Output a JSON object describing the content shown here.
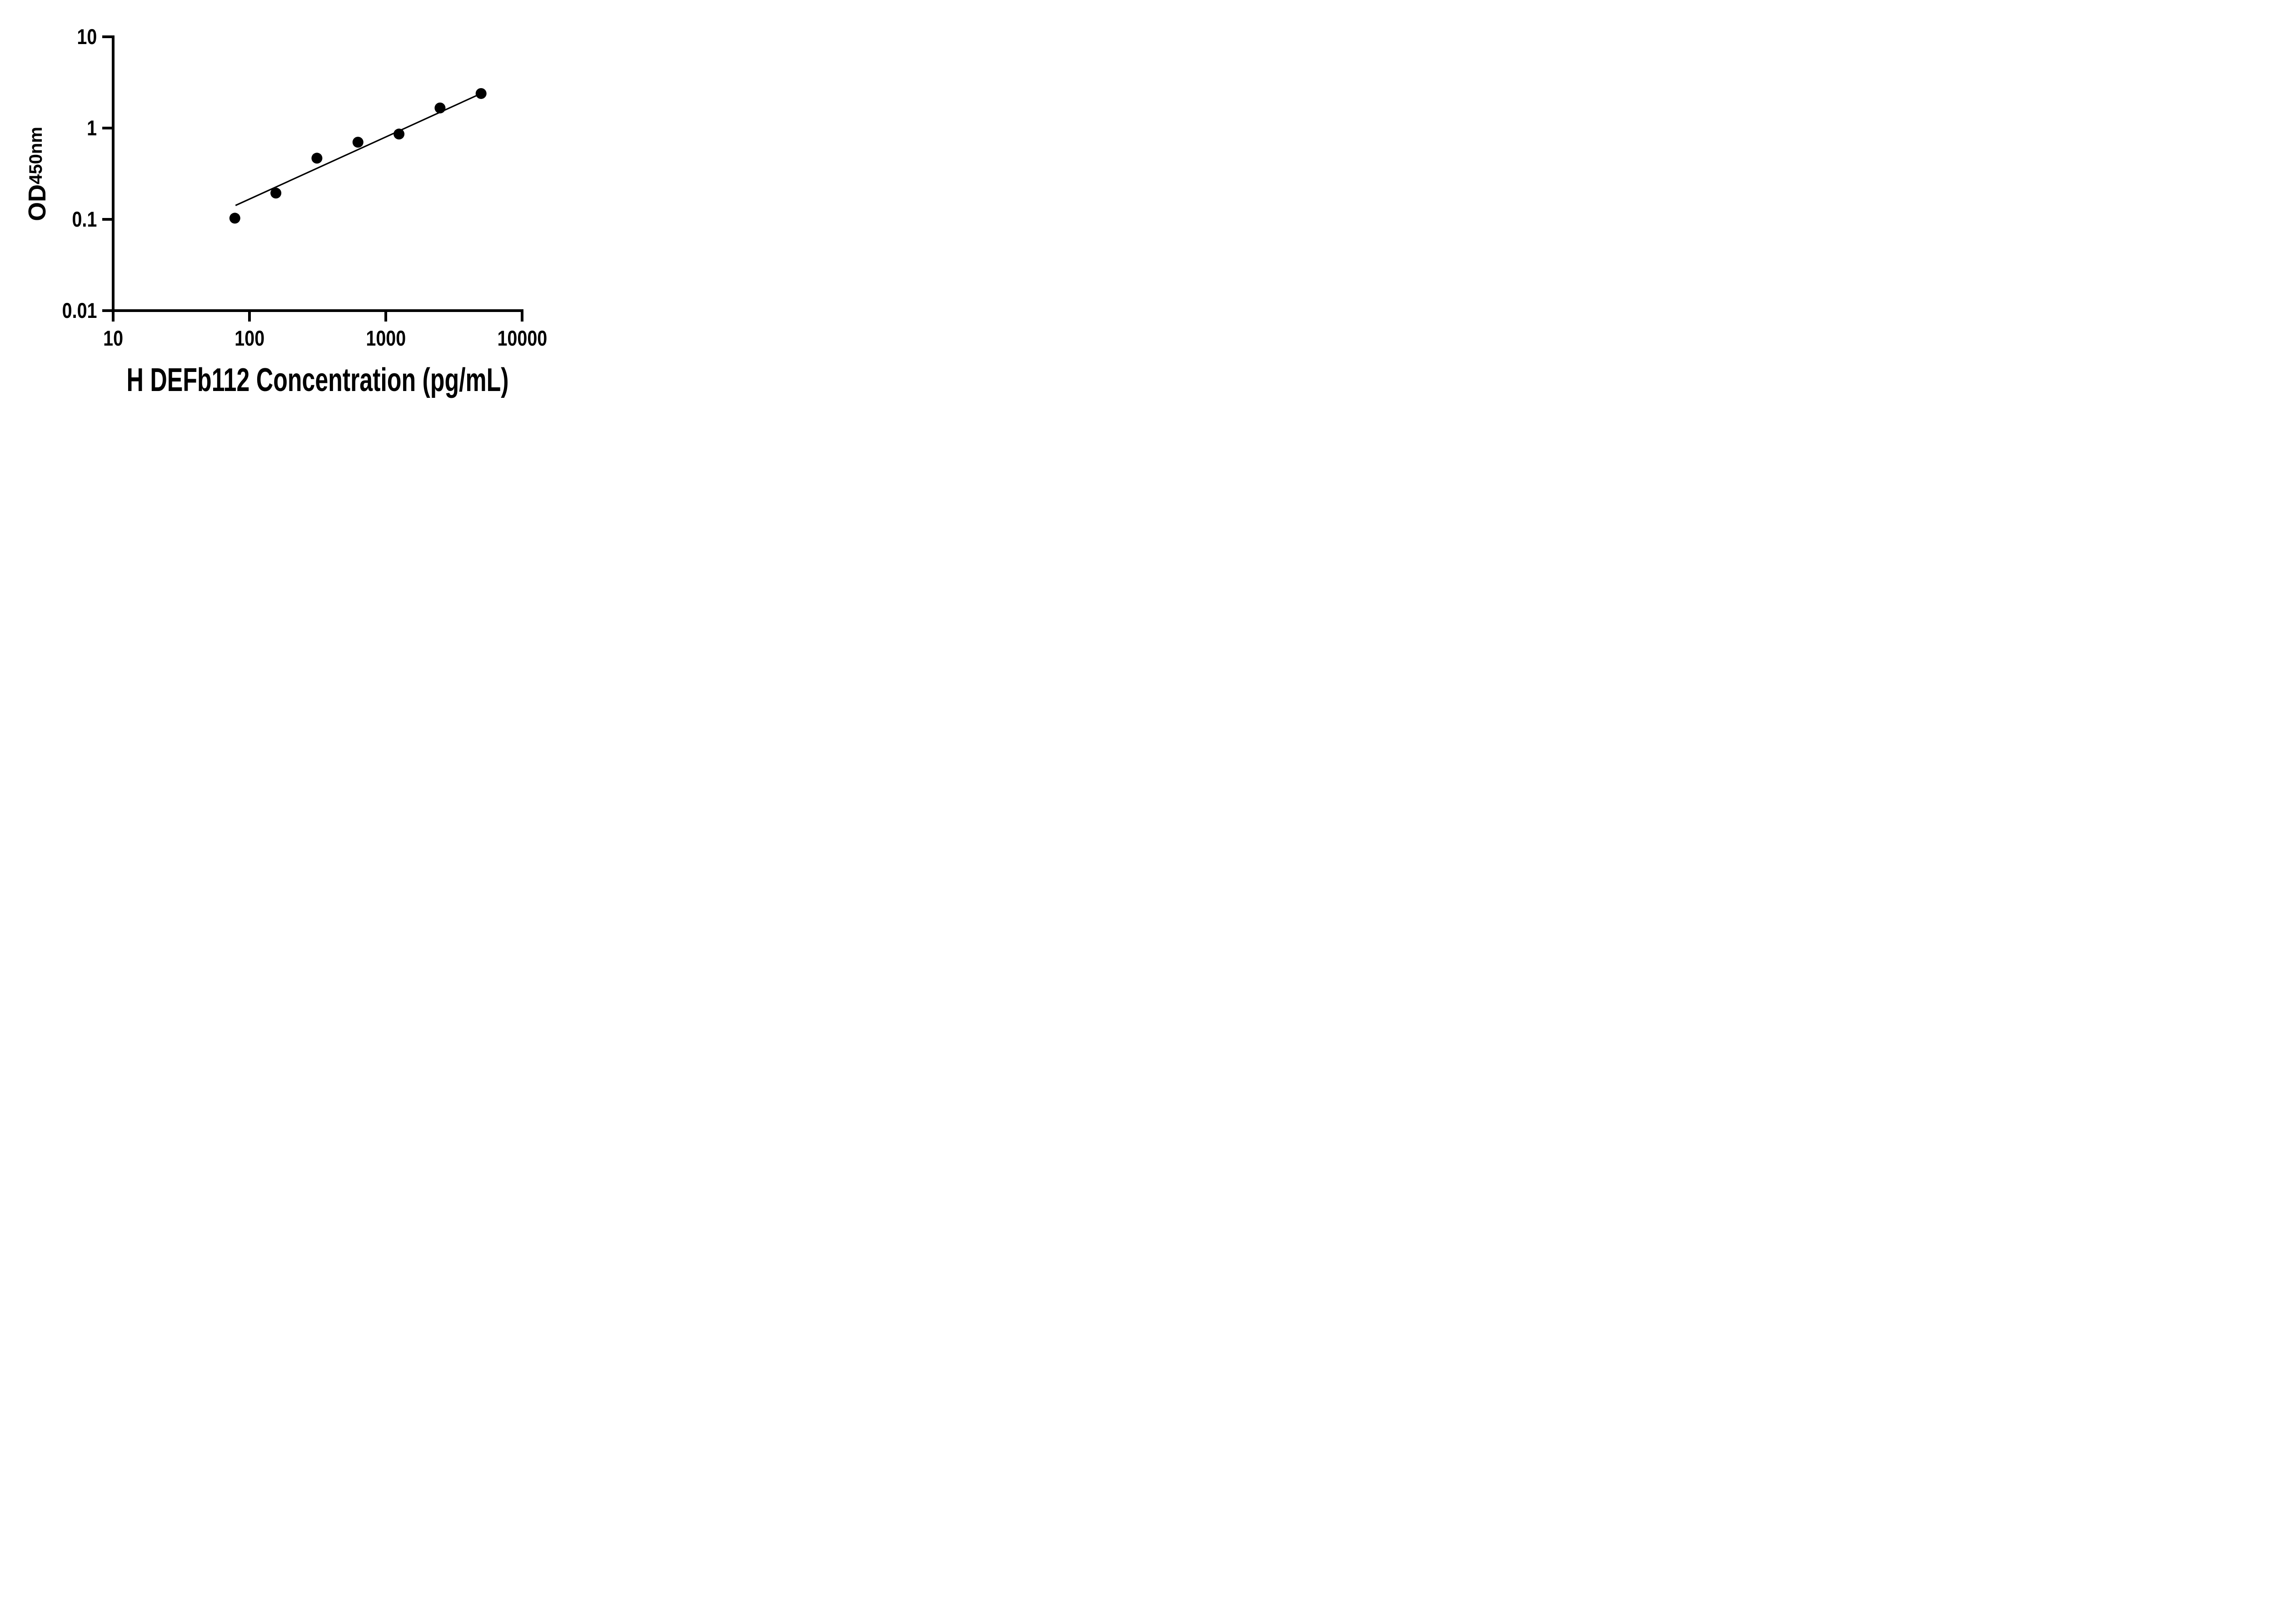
{
  "chart_data": {
    "type": "scatter",
    "title": "",
    "xlabel": "H DEFb112 Concentration (pg/mL)",
    "ylabel": {
      "main": "OD",
      "sub": "450nm"
    },
    "x_scale": "log",
    "y_scale": "log",
    "xlim": [
      10,
      10000
    ],
    "ylim": [
      0.01,
      10
    ],
    "x_ticks": [
      10,
      100,
      1000,
      10000
    ],
    "x_tick_labels": [
      "10",
      "100",
      "1000",
      "10000"
    ],
    "y_ticks": [
      10,
      1,
      0.1,
      0.01
    ],
    "y_tick_labels": [
      "10",
      "1",
      "0.1",
      "0.01"
    ],
    "grid": false,
    "legend": null,
    "marker": {
      "shape": "circle",
      "color": "#000000"
    },
    "colors": {
      "foreground": "#000000",
      "background": "#ffffff"
    },
    "points": [
      {
        "x": 78.125,
        "y": 0.103
      },
      {
        "x": 156.25,
        "y": 0.194
      },
      {
        "x": 312.5,
        "y": 0.468
      },
      {
        "x": 625,
        "y": 0.7
      },
      {
        "x": 1250,
        "y": 0.86
      },
      {
        "x": 2500,
        "y": 1.66
      },
      {
        "x": 5000,
        "y": 2.39
      }
    ],
    "trendline": {
      "x1": 79,
      "y1": 0.142,
      "x2": 5000,
      "y2": 2.39
    }
  }
}
